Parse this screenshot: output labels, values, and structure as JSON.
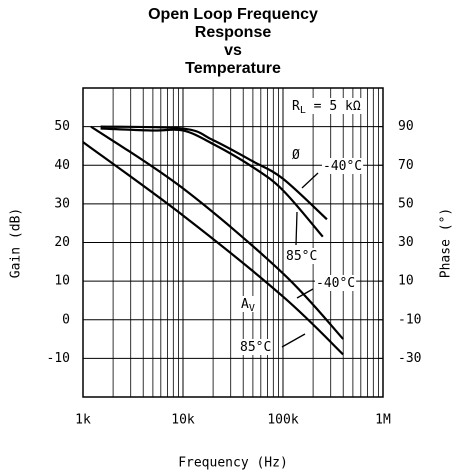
{
  "chart_data": {
    "type": "line",
    "title": [
      "Open Loop Frequency",
      "Response",
      "vs",
      "Temperature"
    ],
    "x_label": "Frequency (Hz)",
    "y_label": "Gain (dB)",
    "y2_label": "Phase (°)",
    "xscale": "log",
    "xlim": [
      1000,
      1000000
    ],
    "xticks": [
      {
        "value": 1000,
        "label": "1k"
      },
      {
        "value": 10000,
        "label": "10k"
      },
      {
        "value": 100000,
        "label": "100k"
      },
      {
        "value": 1000000,
        "label": "1M"
      }
    ],
    "ylim": [
      -20,
      60
    ],
    "yticks": [
      50,
      40,
      30,
      20,
      10,
      0,
      -10
    ],
    "y2lim": [
      -50,
      110
    ],
    "y2ticks": [
      90,
      70,
      50,
      30,
      10,
      -10,
      -30
    ],
    "grid": true,
    "series": [
      {
        "name": "Phase -40°C",
        "color": "#000",
        "axis": "y2",
        "x": [
          1500,
          10000,
          20000,
          50000,
          100000,
          275000
        ],
        "values": [
          90,
          89,
          83,
          72,
          63,
          42
        ]
      },
      {
        "name": "Phase 85°C",
        "color": "#000",
        "axis": "y2",
        "x": [
          1500,
          5000,
          10000,
          20000,
          50000,
          100000,
          250000
        ],
        "values": [
          89,
          88,
          88,
          81,
          69,
          57,
          33
        ]
      },
      {
        "name": "Gain -40°C",
        "color": "#000",
        "x": [
          1200,
          10000,
          100000,
          400000
        ],
        "values": [
          50,
          34,
          12,
          -5
        ]
      },
      {
        "name": "Gain 85°C",
        "color": "#000",
        "x": [
          1000,
          10000,
          100000,
          400000
        ],
        "values": [
          46,
          27,
          6,
          -9
        ]
      }
    ],
    "annotations": [
      {
        "text": "R",
        "sub": "L",
        "rest": " = 5 kΩ"
      },
      {
        "text": "Ø"
      },
      {
        "text": "-40°C"
      },
      {
        "text": "85°C"
      },
      {
        "text": "-40°C"
      },
      {
        "text": "A",
        "sub": "V"
      },
      {
        "text": "85°C"
      }
    ]
  }
}
